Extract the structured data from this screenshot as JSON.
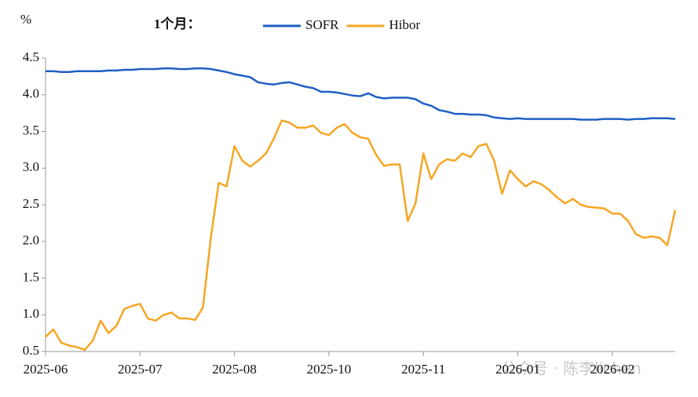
{
  "chart_data": {
    "type": "line",
    "y_label": "%",
    "subtitle": "1个月：",
    "watermark": "公众号 · 陈李lichen",
    "categories": [
      "2025-06",
      null,
      null,
      null,
      null,
      null,
      null,
      null,
      null,
      null,
      null,
      null,
      "2025-07",
      null,
      null,
      null,
      null,
      null,
      null,
      null,
      null,
      null,
      null,
      null,
      "2025-08",
      null,
      null,
      null,
      null,
      null,
      null,
      null,
      null,
      null,
      null,
      null,
      "2025-10",
      null,
      null,
      null,
      null,
      null,
      null,
      null,
      null,
      null,
      null,
      null,
      "2025-11",
      null,
      null,
      null,
      null,
      null,
      null,
      null,
      null,
      null,
      null,
      null,
      "2026-01",
      null,
      null,
      null,
      null,
      null,
      null,
      null,
      null,
      null,
      null,
      null,
      "2026-02",
      null,
      null,
      null,
      null,
      null,
      null,
      null,
      null
    ],
    "series": [
      {
        "name": "SOFR",
        "color": "#1f5fc4",
        "values": [
          4.32,
          4.32,
          4.31,
          4.31,
          4.32,
          4.32,
          4.32,
          4.32,
          4.33,
          4.33,
          4.34,
          4.34,
          4.35,
          4.35,
          4.35,
          4.36,
          4.36,
          4.35,
          4.35,
          4.36,
          4.36,
          4.35,
          4.33,
          4.31,
          4.28,
          4.26,
          4.24,
          4.17,
          4.15,
          4.14,
          4.16,
          4.17,
          4.14,
          4.11,
          4.09,
          4.04,
          4.04,
          4.03,
          4.01,
          3.99,
          3.98,
          4.02,
          3.97,
          3.95,
          3.96,
          3.96,
          3.96,
          3.94,
          3.88,
          3.85,
          3.79,
          3.77,
          3.74,
          3.74,
          3.73,
          3.73,
          3.72,
          3.69,
          3.68,
          3.67,
          3.68,
          3.67,
          3.67,
          3.67,
          3.67,
          3.67,
          3.67,
          3.67,
          3.66,
          3.66,
          3.66,
          3.67,
          3.67,
          3.67,
          3.66,
          3.67,
          3.67,
          3.68,
          3.68,
          3.68,
          3.67
        ]
      },
      {
        "name": "Hibor",
        "color": "#f5a623",
        "values": [
          0.7,
          0.8,
          0.62,
          0.58,
          0.56,
          0.52,
          0.65,
          0.92,
          0.75,
          0.85,
          1.08,
          1.12,
          1.15,
          0.95,
          0.92,
          1.0,
          1.03,
          0.95,
          0.95,
          0.93,
          1.1,
          2.05,
          2.8,
          2.75,
          3.3,
          3.1,
          3.02,
          3.1,
          3.2,
          3.4,
          3.65,
          3.62,
          3.55,
          3.55,
          3.58,
          3.48,
          3.45,
          3.55,
          3.6,
          3.48,
          3.42,
          3.4,
          3.18,
          3.03,
          3.05,
          3.05,
          2.28,
          2.52,
          3.2,
          2.85,
          3.05,
          3.12,
          3.1,
          3.2,
          3.15,
          3.3,
          3.33,
          3.1,
          2.65,
          2.97,
          2.85,
          2.75,
          2.82,
          2.78,
          2.7,
          2.6,
          2.52,
          2.58,
          2.5,
          2.47,
          2.46,
          2.45,
          2.38,
          2.38,
          2.28,
          2.1,
          2.05,
          2.07,
          2.05,
          1.95,
          2.43
        ]
      }
    ],
    "ylim": [
      0.5,
      4.5
    ],
    "yticks": [
      {
        "value": 0.5,
        "label": "0.5"
      },
      {
        "value": 1,
        "label": "1.0"
      },
      {
        "value": 1.5,
        "label": "1.5"
      },
      {
        "value": 2,
        "label": "2.0"
      },
      {
        "value": 2.5,
        "label": "2.5"
      },
      {
        "value": 3,
        "label": "3.0"
      },
      {
        "value": 3.5,
        "label": "3.5"
      },
      {
        "value": 4,
        "label": "4.0"
      },
      {
        "value": 4.5,
        "label": "4.5"
      }
    ],
    "grid": false
  }
}
